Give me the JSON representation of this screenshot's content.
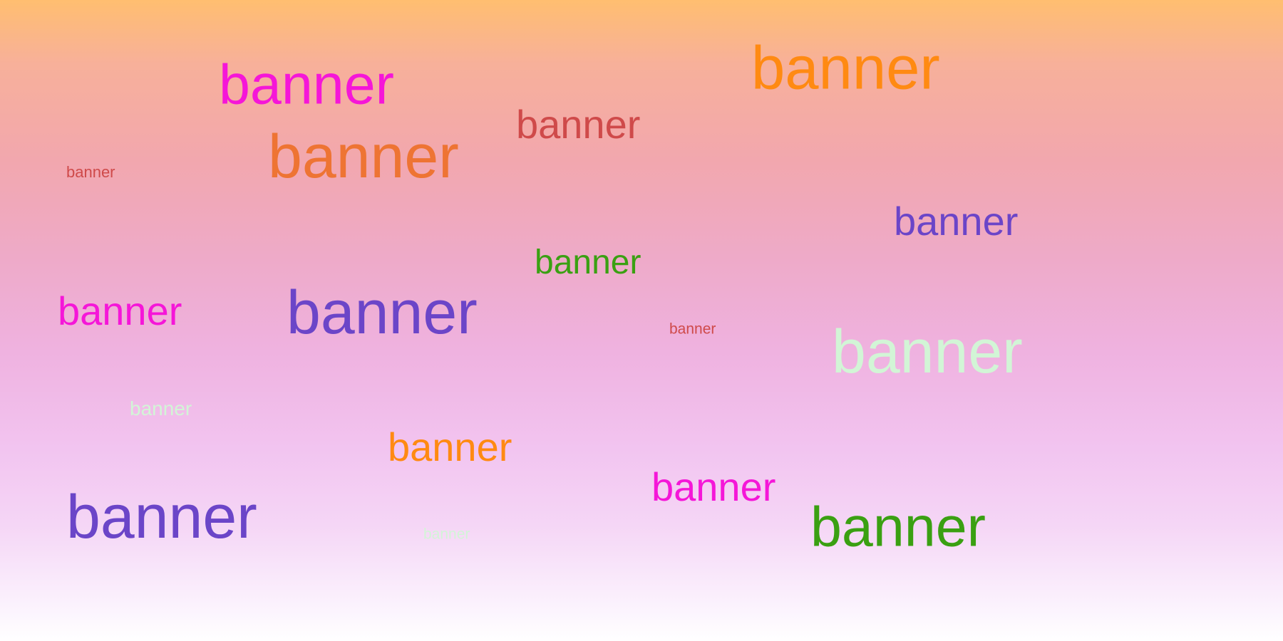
{
  "background": {
    "gradient_colors": [
      "#ffbe70",
      "#f2a7ae",
      "#efb2e0",
      "#f5d6f6",
      "#ffffff"
    ]
  },
  "words": [
    {
      "text": "banner",
      "color": "#f516d8"
    },
    {
      "text": "banner",
      "color": "#ff8a12"
    },
    {
      "text": "banner",
      "color": "#cf4a4a"
    },
    {
      "text": "banner",
      "color": "#ee7433"
    },
    {
      "text": "banner",
      "color": "#cf4a4a"
    },
    {
      "text": "banner",
      "color": "#6b45c8"
    },
    {
      "text": "banner",
      "color": "#3aa012"
    },
    {
      "text": "banner",
      "color": "#f516d8"
    },
    {
      "text": "banner",
      "color": "#6b45c8"
    },
    {
      "text": "banner",
      "color": "#cf4a4a"
    },
    {
      "text": "banner",
      "color": "#d2f5d6"
    },
    {
      "text": "banner",
      "color": "#d2f5d6"
    },
    {
      "text": "banner",
      "color": "#ff8a12"
    },
    {
      "text": "banner",
      "color": "#f516d8"
    },
    {
      "text": "banner",
      "color": "#6b45c8"
    },
    {
      "text": "banner",
      "color": "#d2f5d6"
    },
    {
      "text": "banner",
      "color": "#3aa012"
    }
  ]
}
